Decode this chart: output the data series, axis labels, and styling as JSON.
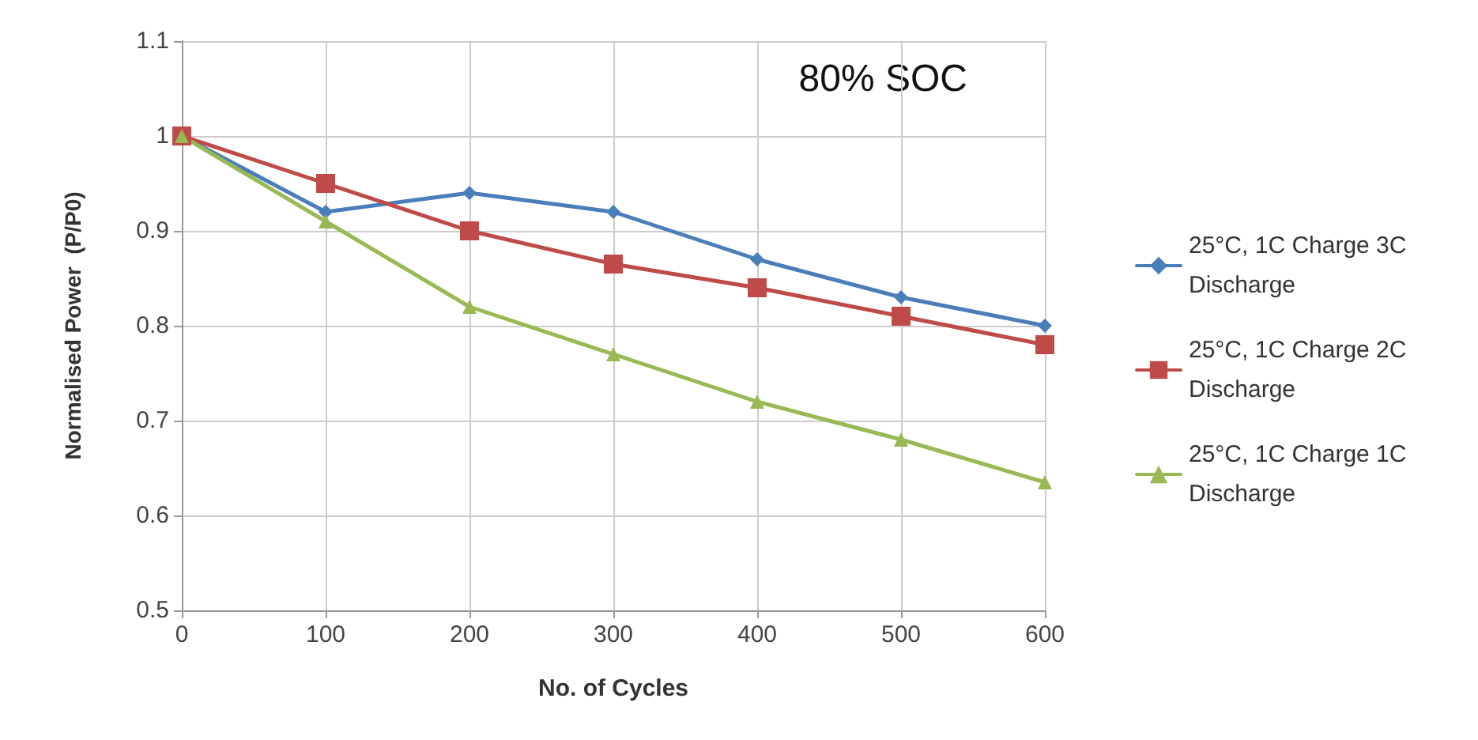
{
  "chart_data": {
    "type": "line",
    "xlabel": "No. of Cycles",
    "ylabel": "Normalised Power  (P/P0)",
    "annotations": [
      "80% SOC"
    ],
    "x": [
      0,
      100,
      200,
      300,
      400,
      500,
      600
    ],
    "series": [
      {
        "name": "25°C, 1C Charge 3C Discharge",
        "color": "#4a7ebb",
        "marker": "diamond",
        "values": [
          1.0,
          0.92,
          0.94,
          0.92,
          0.87,
          0.83,
          0.8
        ]
      },
      {
        "name": "25°C, 1C Charge 2C Discharge",
        "color": "#be4b48",
        "marker": "square",
        "values": [
          1.0,
          0.95,
          0.9,
          0.865,
          0.84,
          0.81,
          0.78
        ]
      },
      {
        "name": "25°C, 1C Charge 1C Discharge",
        "color": "#98b954",
        "marker": "triangle",
        "values": [
          1.0,
          0.91,
          0.82,
          0.77,
          0.72,
          0.68,
          0.635
        ]
      }
    ],
    "xlim": [
      0,
      600
    ],
    "xticks": [
      0,
      100,
      200,
      300,
      400,
      500,
      600
    ],
    "ylim": [
      0.5,
      1.1
    ],
    "yticks": [
      0.5,
      0.6,
      0.7,
      0.8,
      0.9,
      1,
      1.1
    ],
    "grid": true,
    "legend": "right",
    "line_style": "solid"
  }
}
